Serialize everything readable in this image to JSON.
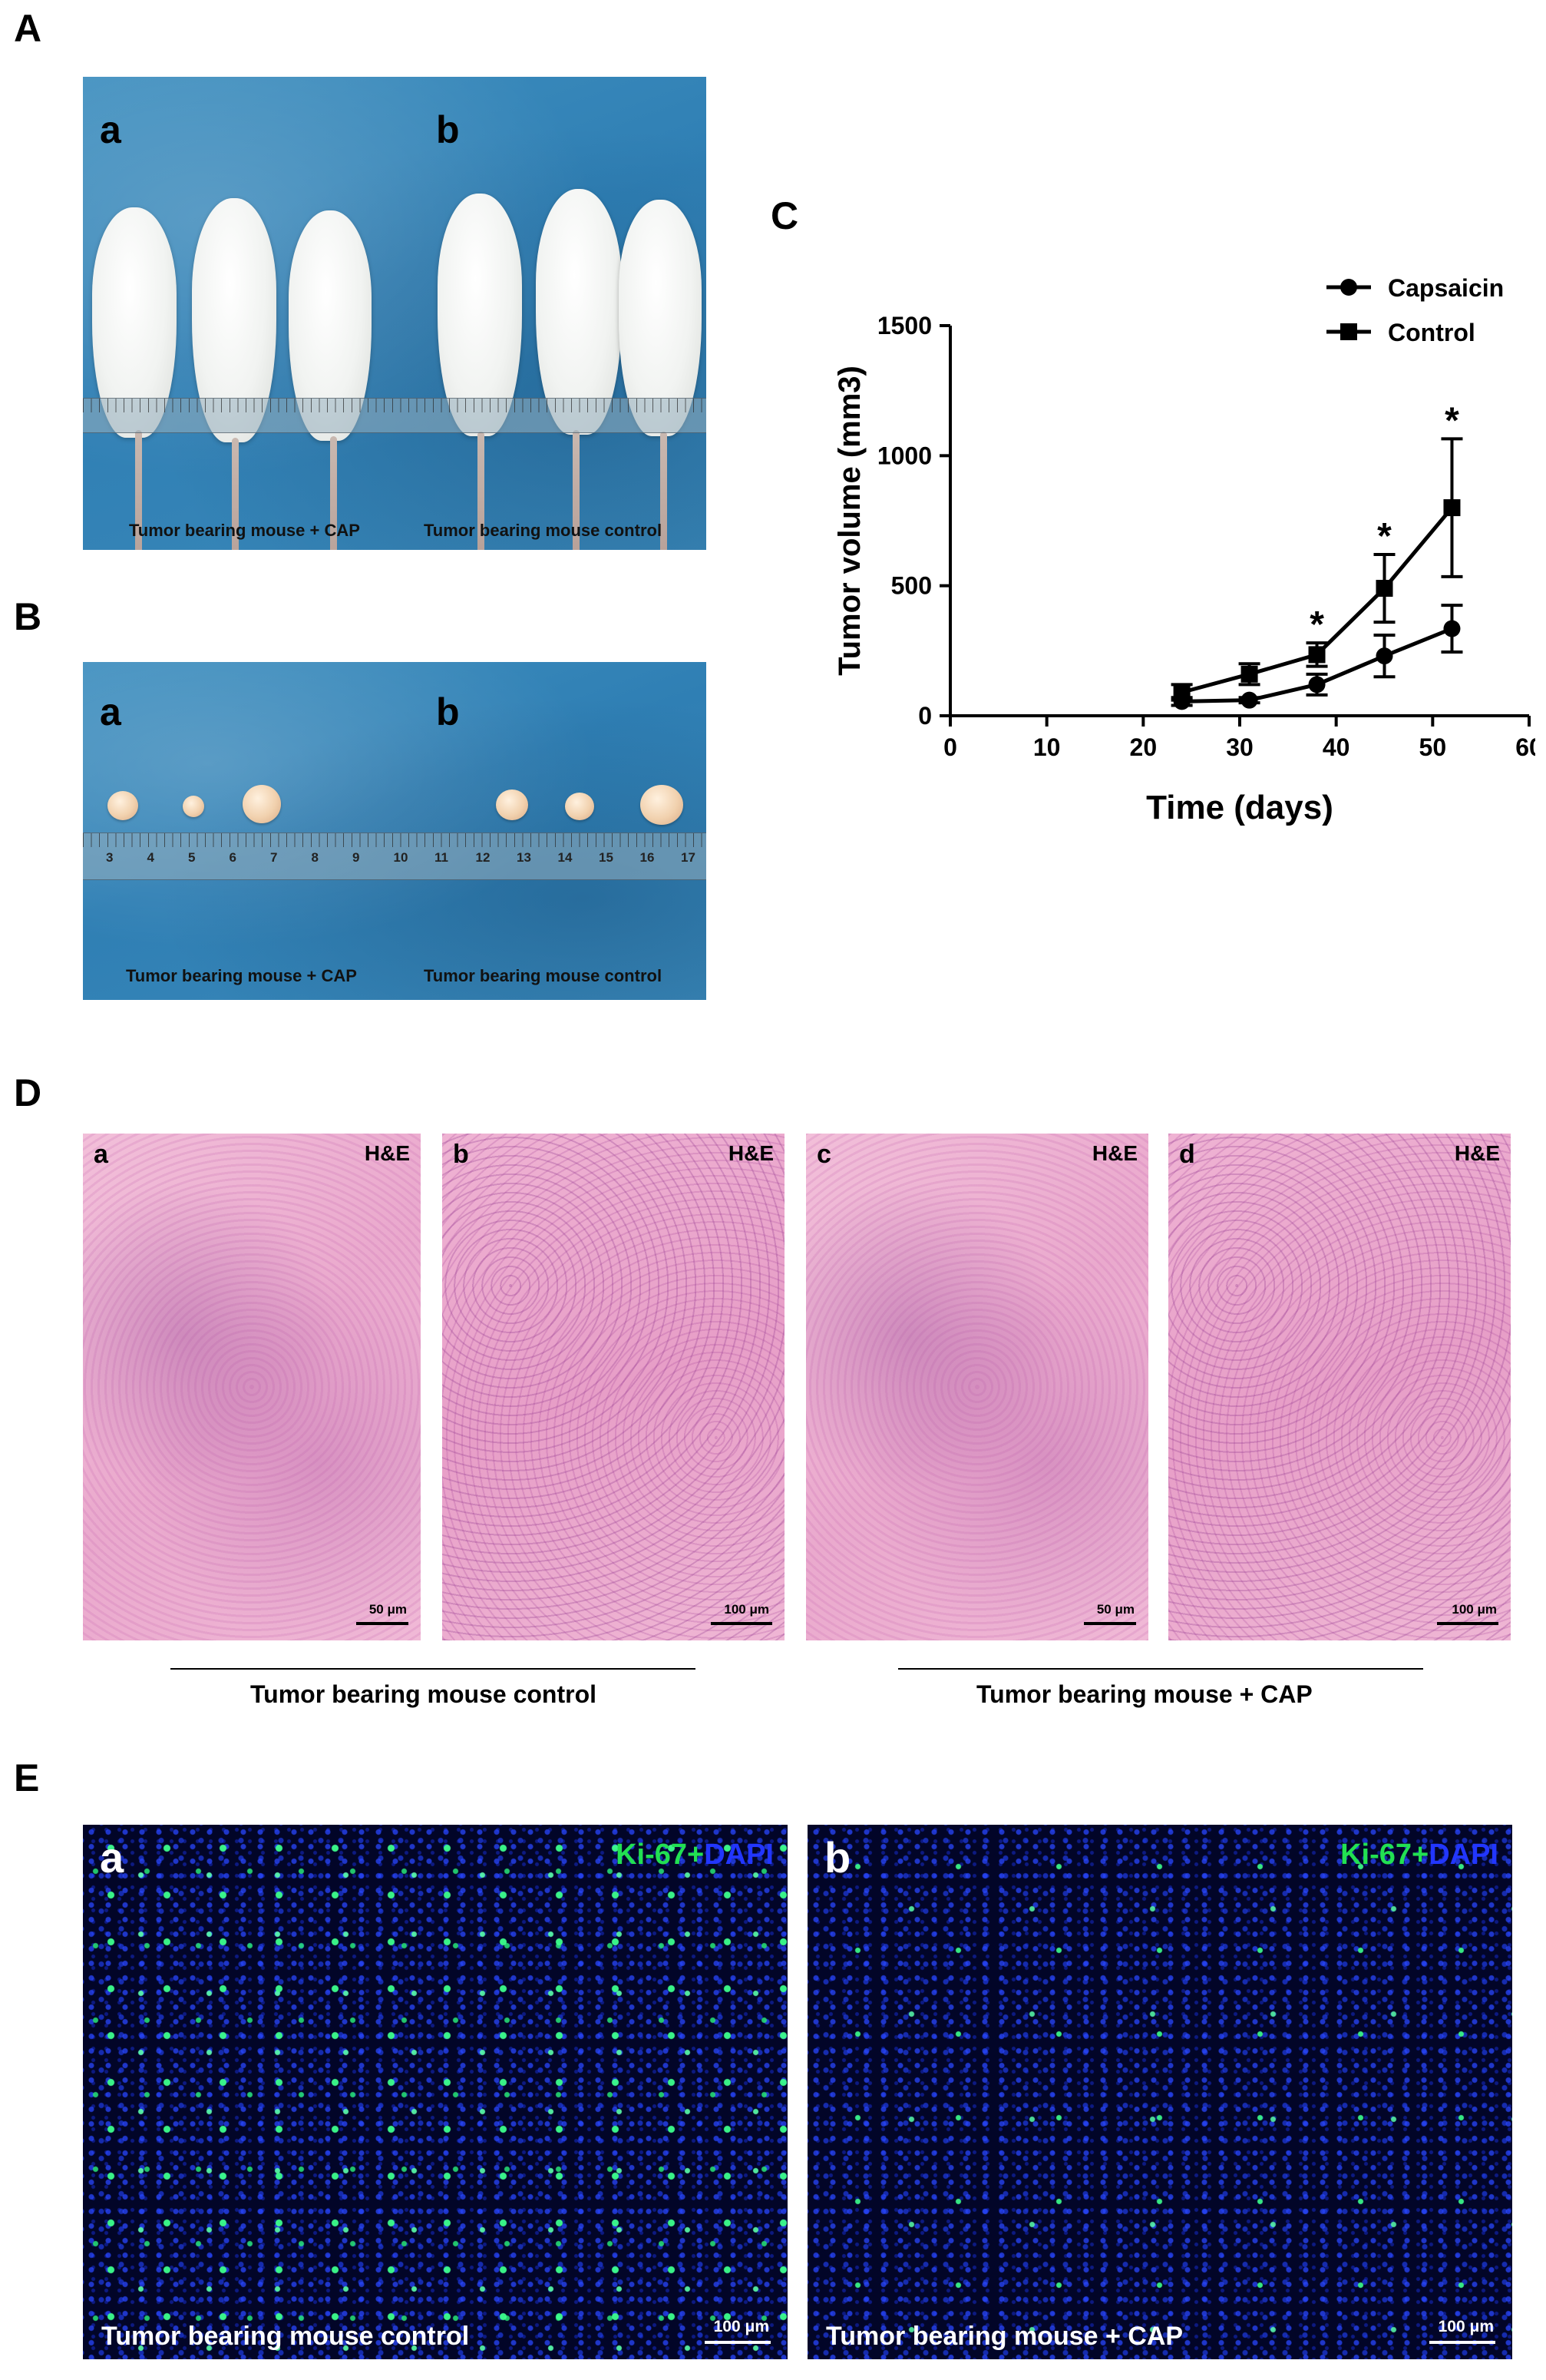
{
  "panels": {
    "A": {
      "letter": "A",
      "sub_a": "a",
      "sub_b": "b",
      "caption_a": "Tumor bearing mouse + CAP",
      "caption_b": "Tumor bearing mouse control"
    },
    "B": {
      "letter": "B",
      "sub_a": "a",
      "sub_b": "b",
      "caption_a": "Tumor bearing mouse + CAP",
      "caption_b": "Tumor bearing mouse control",
      "ruler_numbers": [
        "3",
        "4",
        "5",
        "6",
        "7",
        "8",
        "9",
        "10",
        "11",
        "12",
        "13",
        "14",
        "15",
        "16",
        "17"
      ]
    },
    "C": {
      "letter": "C"
    },
    "D": {
      "letter": "D",
      "images": [
        {
          "sub": "a",
          "stain": "H&E",
          "scale": "50 μm"
        },
        {
          "sub": "b",
          "stain": "H&E",
          "scale": "100 μm"
        },
        {
          "sub": "c",
          "stain": "H&E",
          "scale": "50 μm"
        },
        {
          "sub": "d",
          "stain": "H&E",
          "scale": "100 μm"
        }
      ],
      "group_left": "Tumor bearing mouse control",
      "group_right": "Tumor bearing mouse + CAP"
    },
    "E": {
      "letter": "E",
      "images": [
        {
          "sub": "a",
          "stain_ki67": "Ki-67+",
          "stain_dapi": "DAPI",
          "caption": "Tumor bearing mouse control",
          "scale": "100 μm"
        },
        {
          "sub": "b",
          "stain_ki67": "Ki-67+",
          "stain_dapi": "DAPI",
          "caption": "Tumor bearing mouse + CAP",
          "scale": "100 μm"
        }
      ]
    }
  },
  "colors": {
    "drape_blue": "#3585b8",
    "he_pink": "#eeb0d2",
    "fluor_dark": "#020528",
    "ki67_green": "#22e052",
    "dapi_blue": "#2236ff"
  },
  "chart_data": {
    "type": "line",
    "title": "",
    "xlabel": "Time (days)",
    "ylabel": "Tumor volume (mm3)",
    "xlim": [
      0,
      60
    ],
    "ylim": [
      0,
      1500
    ],
    "xticks": [
      0,
      10,
      20,
      30,
      40,
      50,
      60
    ],
    "yticks": [
      0,
      500,
      1000,
      1500
    ],
    "legend_position": "top-right",
    "series": [
      {
        "name": "Capsaicin",
        "marker": "circle",
        "x": [
          24,
          31,
          38,
          45,
          52
        ],
        "y": [
          55,
          60,
          120,
          230,
          335
        ],
        "err": [
          15,
          10,
          40,
          80,
          90
        ]
      },
      {
        "name": "Control",
        "marker": "square",
        "x": [
          24,
          31,
          38,
          45,
          52
        ],
        "y": [
          90,
          160,
          235,
          490,
          800
        ],
        "err": [
          30,
          40,
          45,
          130,
          265
        ]
      }
    ],
    "annotations": [
      {
        "text": "*",
        "x": 38
      },
      {
        "text": "*",
        "x": 45
      },
      {
        "text": "*",
        "x": 52
      }
    ]
  }
}
